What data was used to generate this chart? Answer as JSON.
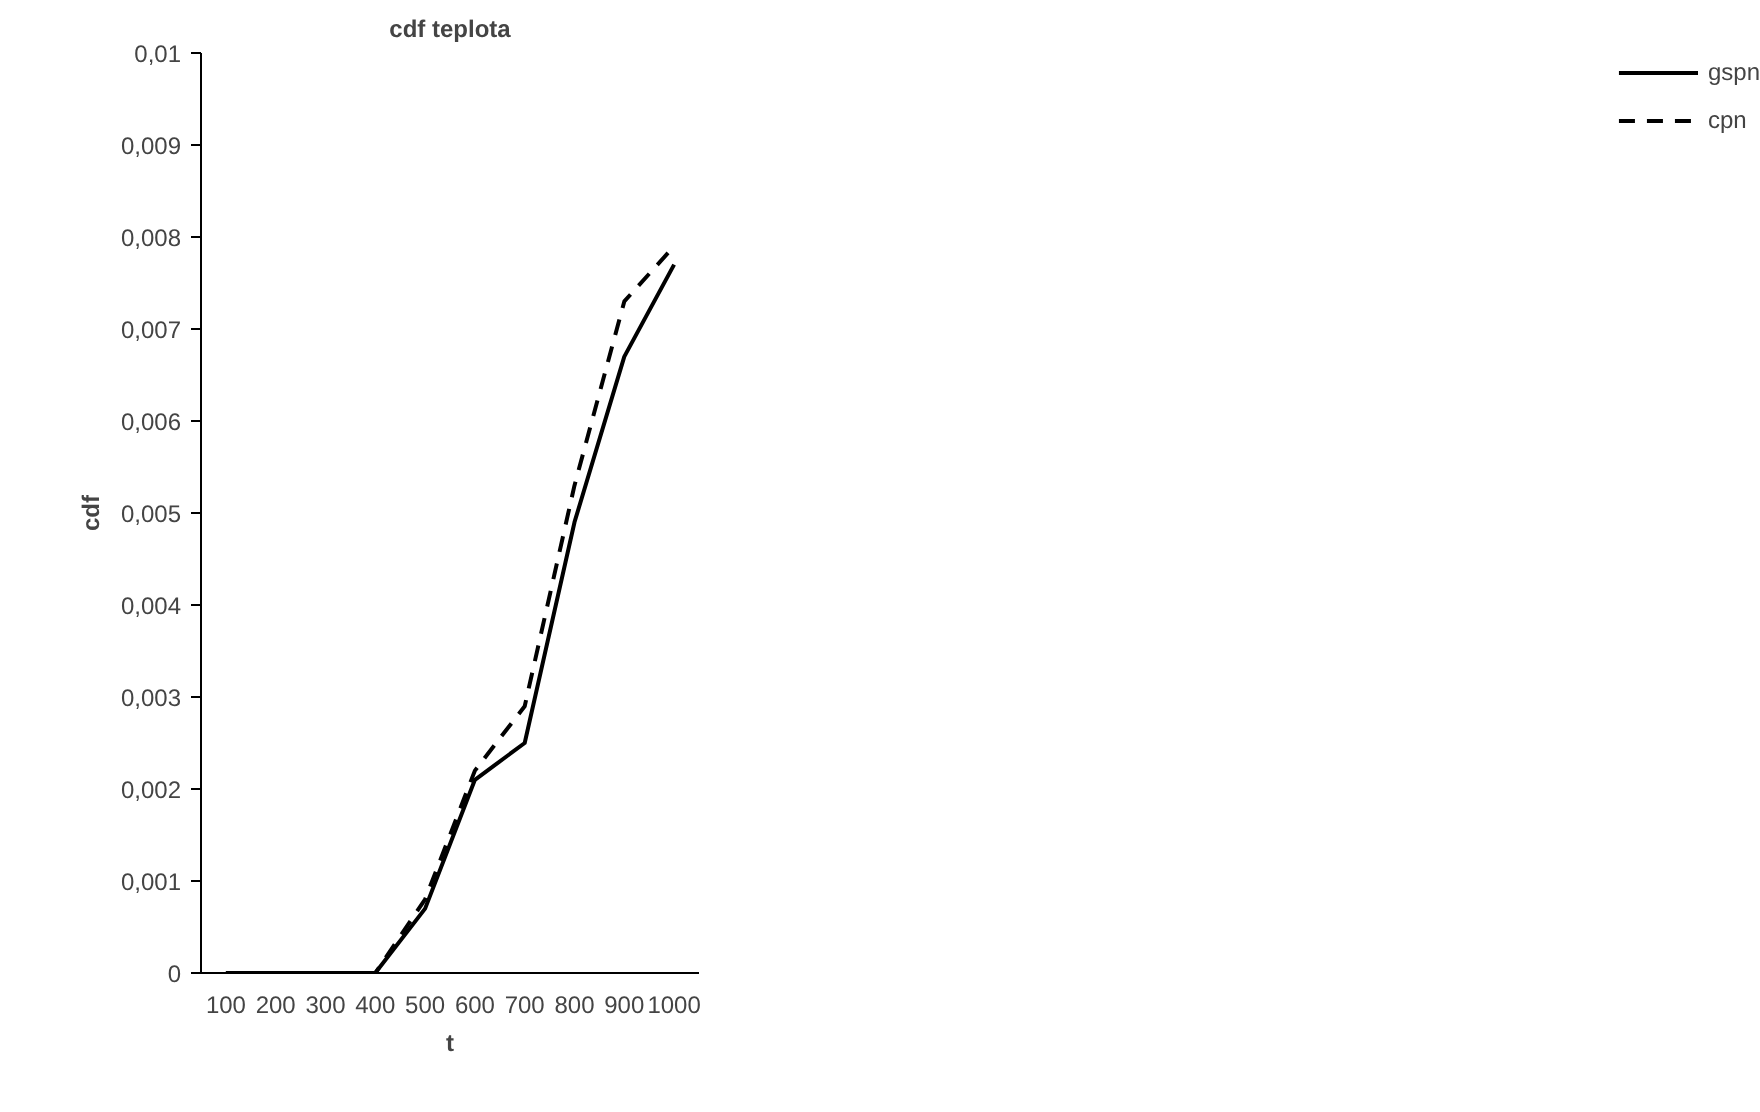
{
  "chart_data": {
    "type": "line",
    "title": "cdf teplota",
    "xlabel": "t",
    "ylabel": "cdf",
    "categories": [
      "100",
      "200",
      "300",
      "400",
      "500",
      "600",
      "700",
      "800",
      "900",
      "1000"
    ],
    "series": [
      {
        "name": "gspn",
        "color": "#000000",
        "line_style": "solid",
        "values": [
          0,
          0,
          0,
          0,
          0.0007,
          0.0021,
          0.0025,
          0.0049,
          0.0067,
          0.0077
        ]
      },
      {
        "name": "cpn",
        "color": "#000000",
        "line_style": "dashed",
        "values": [
          0,
          0,
          0,
          0,
          0.0008,
          0.0022,
          0.0029,
          0.0053,
          0.0073,
          0.0079
        ]
      }
    ],
    "ylim": [
      0,
      0.01
    ],
    "yticks": [
      {
        "value": 0,
        "label": "0"
      },
      {
        "value": 0.001,
        "label": "0,001"
      },
      {
        "value": 0.002,
        "label": "0,002"
      },
      {
        "value": 0.003,
        "label": "0,003"
      },
      {
        "value": 0.004,
        "label": "0,004"
      },
      {
        "value": 0.005,
        "label": "0,005"
      },
      {
        "value": 0.006,
        "label": "0,006"
      },
      {
        "value": 0.007,
        "label": "0,007"
      },
      {
        "value": 0.008,
        "label": "0,008"
      },
      {
        "value": 0.009,
        "label": "0,009"
      },
      {
        "value": 0.01,
        "label": "0,01"
      }
    ],
    "grid": false,
    "legend": "right",
    "marker": "none"
  }
}
